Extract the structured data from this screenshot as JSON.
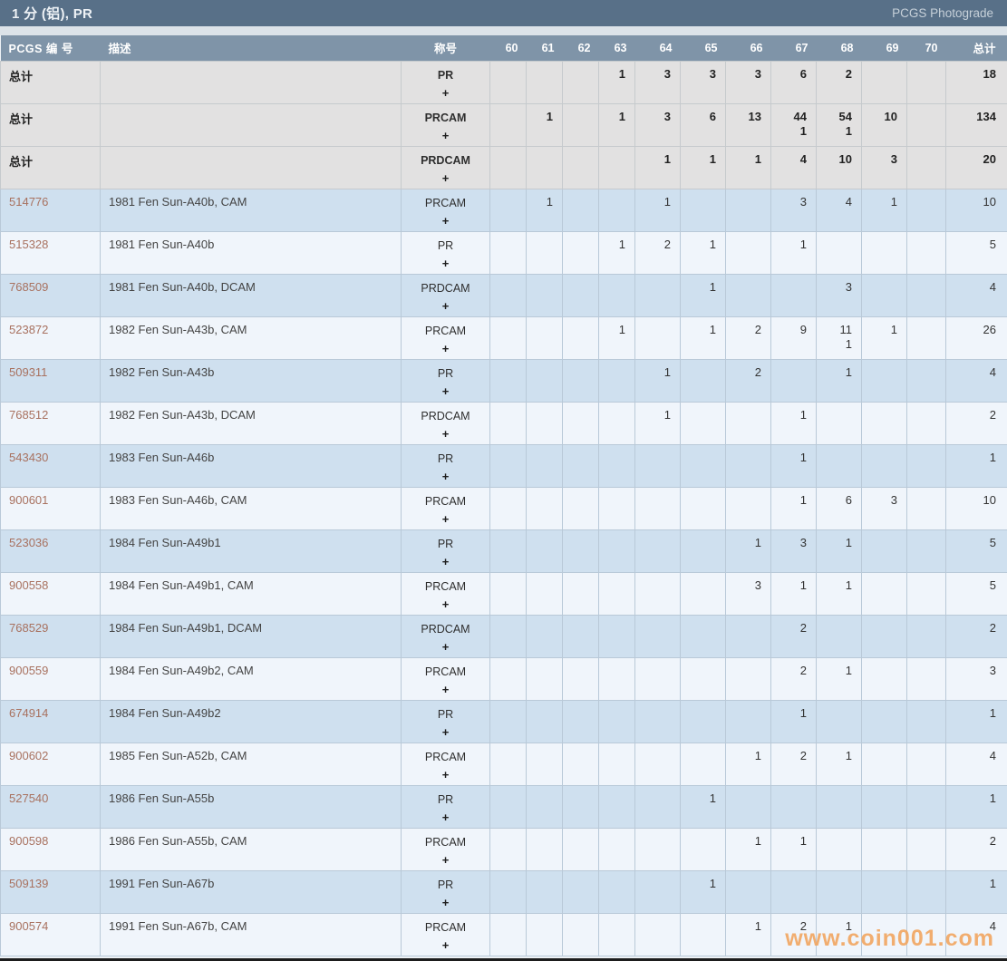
{
  "titlebar": {
    "title": "1 分 (铝), PR",
    "right_link": "PCGS Photograde"
  },
  "watermark": "www.coin001.com",
  "colors": {
    "title_bar": "#587088",
    "header_row": "#7f94a8",
    "summary_row_bg": "#e2e1e1",
    "row_blue_bg": "#cfe0ef",
    "row_light_bg": "#f0f5fb",
    "pcgs_link": "#a8715f",
    "watermark": "#f2a45c"
  },
  "table": {
    "headers": {
      "number": "PCGS 编 号",
      "description": "描述",
      "designation": "称号",
      "grades": [
        "60",
        "61",
        "62",
        "63",
        "64",
        "65",
        "66",
        "67",
        "68",
        "69",
        "70"
      ],
      "total": "总计"
    },
    "plus_symbol": "+",
    "rows": [
      {
        "type": "summary",
        "label": "总计",
        "description": "",
        "designation": "PR",
        "grades": [
          "",
          "",
          "",
          "1",
          "3",
          "3",
          "3",
          "6",
          "2",
          "",
          ""
        ],
        "total": "18"
      },
      {
        "type": "summary",
        "label": "总计",
        "description": "",
        "designation": "PRCAM",
        "grades": [
          "",
          "1",
          "",
          "1",
          "3",
          "6",
          "13",
          [
            "44",
            "1"
          ],
          [
            "54",
            "1"
          ],
          "10",
          ""
        ],
        "total": "134"
      },
      {
        "type": "summary",
        "label": "总计",
        "description": "",
        "designation": "PRDCAM",
        "grades": [
          "",
          "",
          "",
          "",
          "1",
          "1",
          "1",
          "4",
          "10",
          "3",
          ""
        ],
        "total": "20"
      },
      {
        "type": "data",
        "number": "514776",
        "description": "1981 Fen Sun-A40b, CAM",
        "designation": "PRCAM",
        "grades": [
          "",
          "1",
          "",
          "",
          "1",
          "",
          "",
          "3",
          "4",
          "1",
          ""
        ],
        "total": "10"
      },
      {
        "type": "data",
        "number": "515328",
        "description": "1981 Fen Sun-A40b",
        "designation": "PR",
        "grades": [
          "",
          "",
          "",
          "1",
          "2",
          "1",
          "",
          "1",
          "",
          "",
          ""
        ],
        "total": "5"
      },
      {
        "type": "data",
        "number": "768509",
        "description": "1981 Fen Sun-A40b, DCAM",
        "designation": "PRDCAM",
        "grades": [
          "",
          "",
          "",
          "",
          "",
          "1",
          "",
          "",
          "3",
          "",
          ""
        ],
        "total": "4"
      },
      {
        "type": "data",
        "number": "523872",
        "description": "1982 Fen Sun-A43b, CAM",
        "designation": "PRCAM",
        "grades": [
          "",
          "",
          "",
          "1",
          "",
          "1",
          "2",
          "9",
          [
            "11",
            "1"
          ],
          "1",
          ""
        ],
        "total": "26"
      },
      {
        "type": "data",
        "number": "509311",
        "description": "1982 Fen Sun-A43b",
        "designation": "PR",
        "grades": [
          "",
          "",
          "",
          "",
          "1",
          "",
          "2",
          "",
          "1",
          "",
          ""
        ],
        "total": "4"
      },
      {
        "type": "data",
        "number": "768512",
        "description": "1982 Fen Sun-A43b, DCAM",
        "designation": "PRDCAM",
        "grades": [
          "",
          "",
          "",
          "",
          "1",
          "",
          "",
          "1",
          "",
          "",
          ""
        ],
        "total": "2"
      },
      {
        "type": "data",
        "number": "543430",
        "description": "1983 Fen Sun-A46b",
        "designation": "PR",
        "grades": [
          "",
          "",
          "",
          "",
          "",
          "",
          "",
          "1",
          "",
          "",
          ""
        ],
        "total": "1"
      },
      {
        "type": "data",
        "number": "900601",
        "description": "1983 Fen Sun-A46b, CAM",
        "designation": "PRCAM",
        "grades": [
          "",
          "",
          "",
          "",
          "",
          "",
          "",
          "1",
          "6",
          "3",
          ""
        ],
        "total": "10"
      },
      {
        "type": "data",
        "number": "523036",
        "description": "1984 Fen Sun-A49b1",
        "designation": "PR",
        "grades": [
          "",
          "",
          "",
          "",
          "",
          "",
          "1",
          "3",
          "1",
          "",
          ""
        ],
        "total": "5"
      },
      {
        "type": "data",
        "number": "900558",
        "description": "1984 Fen Sun-A49b1, CAM",
        "designation": "PRCAM",
        "grades": [
          "",
          "",
          "",
          "",
          "",
          "",
          "3",
          "1",
          "1",
          "",
          ""
        ],
        "total": "5"
      },
      {
        "type": "data",
        "number": "768529",
        "description": "1984 Fen Sun-A49b1, DCAM",
        "designation": "PRDCAM",
        "grades": [
          "",
          "",
          "",
          "",
          "",
          "",
          "",
          "2",
          "",
          "",
          ""
        ],
        "total": "2"
      },
      {
        "type": "data",
        "number": "900559",
        "description": "1984 Fen Sun-A49b2, CAM",
        "designation": "PRCAM",
        "grades": [
          "",
          "",
          "",
          "",
          "",
          "",
          "",
          "2",
          "1",
          "",
          ""
        ],
        "total": "3"
      },
      {
        "type": "data",
        "number": "674914",
        "description": "1984 Fen Sun-A49b2",
        "designation": "PR",
        "grades": [
          "",
          "",
          "",
          "",
          "",
          "",
          "",
          "1",
          "",
          "",
          ""
        ],
        "total": "1"
      },
      {
        "type": "data",
        "number": "900602",
        "description": "1985 Fen Sun-A52b, CAM",
        "designation": "PRCAM",
        "grades": [
          "",
          "",
          "",
          "",
          "",
          "",
          "1",
          "2",
          "1",
          "",
          ""
        ],
        "total": "4"
      },
      {
        "type": "data",
        "number": "527540",
        "description": "1986 Fen Sun-A55b",
        "designation": "PR",
        "grades": [
          "",
          "",
          "",
          "",
          "",
          "1",
          "",
          "",
          "",
          "",
          ""
        ],
        "total": "1"
      },
      {
        "type": "data",
        "number": "900598",
        "description": "1986 Fen Sun-A55b, CAM",
        "designation": "PRCAM",
        "grades": [
          "",
          "",
          "",
          "",
          "",
          "",
          "1",
          "1",
          "",
          "",
          ""
        ],
        "total": "2"
      },
      {
        "type": "data",
        "number": "509139",
        "description": "1991 Fen Sun-A67b",
        "designation": "PR",
        "grades": [
          "",
          "",
          "",
          "",
          "",
          "1",
          "",
          "",
          "",
          "",
          ""
        ],
        "total": "1"
      },
      {
        "type": "data",
        "number": "900574",
        "description": "1991 Fen Sun-A67b, CAM",
        "designation": "PRCAM",
        "grades": [
          "",
          "",
          "",
          "",
          "",
          "",
          "1",
          "2",
          "1",
          "",
          ""
        ],
        "total": "4"
      }
    ]
  }
}
